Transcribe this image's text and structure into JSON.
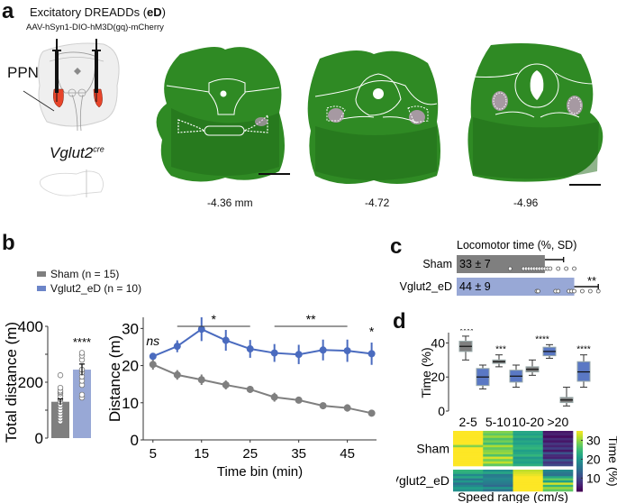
{
  "panel_a": {
    "letter": "a",
    "title_prefix": "Excitatory DREADDs (",
    "title_bold": "eD",
    "title_suffix": ")",
    "subtitle": "AAV-hSyn1-DIO-hM3D(gq)-mCherry",
    "target_label": "PPN",
    "mouse_line_base": "Vglut2",
    "mouse_line_sup": "cre",
    "sections": [
      {
        "label": "-4.36 mm"
      },
      {
        "label": "-4.72"
      },
      {
        "label": "-4.96"
      }
    ],
    "colors": {
      "tissue": "#2f8a24",
      "tissue_dark": "#1f6a18",
      "mcherry": "#d9a0d8",
      "injection": "#e8442a"
    }
  },
  "panel_b": {
    "letter": "b",
    "legend": [
      {
        "label": "Sham (n = 15)",
        "color": "#7f7f7f"
      },
      {
        "label": "Vglut2_eD (n = 10)",
        "color": "#6c85c8"
      }
    ]
  },
  "panel_c": {
    "letter": "c"
  },
  "panel_d": {
    "letter": "d"
  },
  "chart_data": [
    {
      "id": "total-distance",
      "type": "bar",
      "ylabel": "Total distance (m)",
      "ylim": [
        0,
        400
      ],
      "yticks": [
        0,
        200,
        400
      ],
      "categories": [
        "Sham",
        "Vglut2_eD"
      ],
      "values": [
        130,
        245
      ],
      "errors": [
        10,
        20
      ],
      "colors": [
        "#7f7f7f",
        "#98a8d6"
      ],
      "points": [
        [
          60,
          70,
          80,
          90,
          100,
          110,
          120,
          130,
          140,
          150,
          160,
          165,
          170,
          180,
          225
        ],
        [
          145,
          155,
          190,
          205,
          220,
          235,
          245,
          280,
          295,
          305
        ]
      ],
      "significance": "****"
    },
    {
      "id": "distance-timecourse",
      "type": "line",
      "xlabel": "Time bin (min)",
      "ylabel": "Distance (m)",
      "xlim": [
        3,
        51
      ],
      "ylim": [
        0,
        33
      ],
      "xticks": [
        5,
        15,
        25,
        35,
        45
      ],
      "yticks": [
        0,
        10,
        20,
        30
      ],
      "x": [
        5,
        10,
        15,
        20,
        25,
        30,
        35,
        40,
        45,
        50
      ],
      "series": [
        {
          "name": "Vglut2_eD",
          "color": "#4a6bbf",
          "values": [
            22.5,
            25.2,
            29.8,
            26.8,
            24.5,
            23.4,
            23.0,
            24.2,
            24.0,
            23.2
          ],
          "errors": [
            0.8,
            1.6,
            3.2,
            2.8,
            2.4,
            2.4,
            2.6,
            2.8,
            3.0,
            3.0
          ]
        },
        {
          "name": "Sham",
          "color": "#7f7f7f",
          "values": [
            20.3,
            17.5,
            16.2,
            14.8,
            13.6,
            11.5,
            10.7,
            9.2,
            8.6,
            7.2
          ],
          "errors": [
            1.4,
            1.3,
            1.4,
            1.2,
            0.9,
            1.2,
            0.6,
            0.9,
            1.0,
            0.9
          ]
        }
      ],
      "annotations": [
        {
          "text": "ns",
          "x": 5,
          "italic": true
        },
        {
          "text": "*",
          "bracket": [
            10,
            25
          ]
        },
        {
          "text": "**",
          "bracket": [
            30,
            45
          ]
        },
        {
          "text": "*",
          "x": 50
        }
      ]
    },
    {
      "id": "locomotor-time",
      "type": "bar",
      "orientation": "horizontal",
      "title": "Locomotor time (%, SD)",
      "categories": [
        "Sham",
        "Vglut2_eD"
      ],
      "values": [
        33,
        44
      ],
      "sd": [
        7,
        9
      ],
      "value_labels": [
        "33 ± 7",
        "44 ± 9"
      ],
      "xlim": [
        0,
        60
      ],
      "colors": [
        "#7f7f7f",
        "#98a8d6"
      ],
      "points": [
        [
          20,
          25,
          26,
          27,
          28,
          29,
          30,
          31,
          32,
          33,
          34,
          35,
          38,
          41,
          44
        ],
        [
          30,
          30.5,
          37,
          38,
          42,
          43,
          44,
          47,
          50,
          53
        ]
      ],
      "significance": "**"
    },
    {
      "id": "speed-time-boxplot",
      "type": "box",
      "ylabel": "Time (%)",
      "ylim": [
        0,
        45
      ],
      "yticks": [
        0,
        20,
        40
      ],
      "categories": [
        "2-5",
        "5-10",
        "10-20",
        ">20"
      ],
      "series": [
        {
          "name": "Sham",
          "color": "#7f7f7f",
          "boxes": [
            {
              "min": 30,
              "q1": 35,
              "median": 38,
              "q3": 41,
              "max": 44
            },
            {
              "min": 26,
              "q1": 28,
              "median": 29,
              "q3": 30,
              "max": 33
            },
            {
              "min": 21,
              "q1": 23,
              "median": 24.5,
              "q3": 26,
              "max": 30
            },
            {
              "min": 3,
              "q1": 5,
              "median": 6.5,
              "q3": 8,
              "max": 14
            }
          ]
        },
        {
          "name": "Vglut2_eD",
          "color": "#5a78c4",
          "boxes": [
            {
              "min": 13,
              "q1": 15,
              "median": 20,
              "q3": 25,
              "max": 27
            },
            {
              "min": 14,
              "q1": 17,
              "median": 20.5,
              "q3": 24,
              "max": 27
            },
            {
              "min": 31,
              "q1": 32.5,
              "median": 35,
              "q3": 37.5,
              "max": 39
            },
            {
              "min": 14,
              "q1": 17.5,
              "median": 23,
              "q3": 29,
              "max": 33
            }
          ]
        }
      ],
      "significance": [
        "****",
        "***",
        "****",
        "****"
      ]
    },
    {
      "id": "speed-heatmap",
      "type": "heatmap",
      "xlabel": "Speed range (cm/s)",
      "colorbar_label": "Time (%)",
      "colorbar_ticks": [
        10,
        20,
        30
      ],
      "clim": [
        3,
        35
      ],
      "columns": [
        "2-5",
        "5-10",
        "10-20",
        ">20"
      ],
      "groups": [
        {
          "name": "Sham",
          "rows": [
            [
              36,
              29,
              22,
              5
            ],
            [
              37,
              27,
              21,
              6
            ],
            [
              36,
              30,
              23,
              4
            ],
            [
              38,
              26,
              20,
              7
            ],
            [
              35,
              28,
              22,
              5
            ],
            [
              36,
              25,
              21,
              8
            ],
            [
              29,
              31,
              23,
              6
            ],
            [
              37,
              27,
              24,
              9
            ],
            [
              36,
              29,
              21,
              5
            ],
            [
              35,
              30,
              22,
              11
            ],
            [
              38,
              26,
              24,
              7
            ],
            [
              37,
              33,
              20,
              6
            ],
            [
              36,
              28,
              22,
              12
            ],
            [
              35,
              32,
              21,
              8
            ],
            [
              36,
              27,
              23,
              10
            ]
          ]
        },
        {
          "name": "Vglut2_eD",
          "rows": [
            [
              24,
              19,
              32,
              18
            ],
            [
              23,
              22,
              33,
              16
            ],
            [
              18,
              16,
              34,
              15
            ],
            [
              22,
              17,
              36,
              22
            ],
            [
              16,
              18,
              35,
              27
            ],
            [
              20,
              17,
              36,
              21
            ],
            [
              15,
              16,
              37,
              33
            ],
            [
              18,
              14,
              36,
              24
            ],
            [
              21,
              20,
              35,
              30
            ],
            [
              19,
              15,
              36,
              27
            ]
          ]
        }
      ]
    }
  ]
}
